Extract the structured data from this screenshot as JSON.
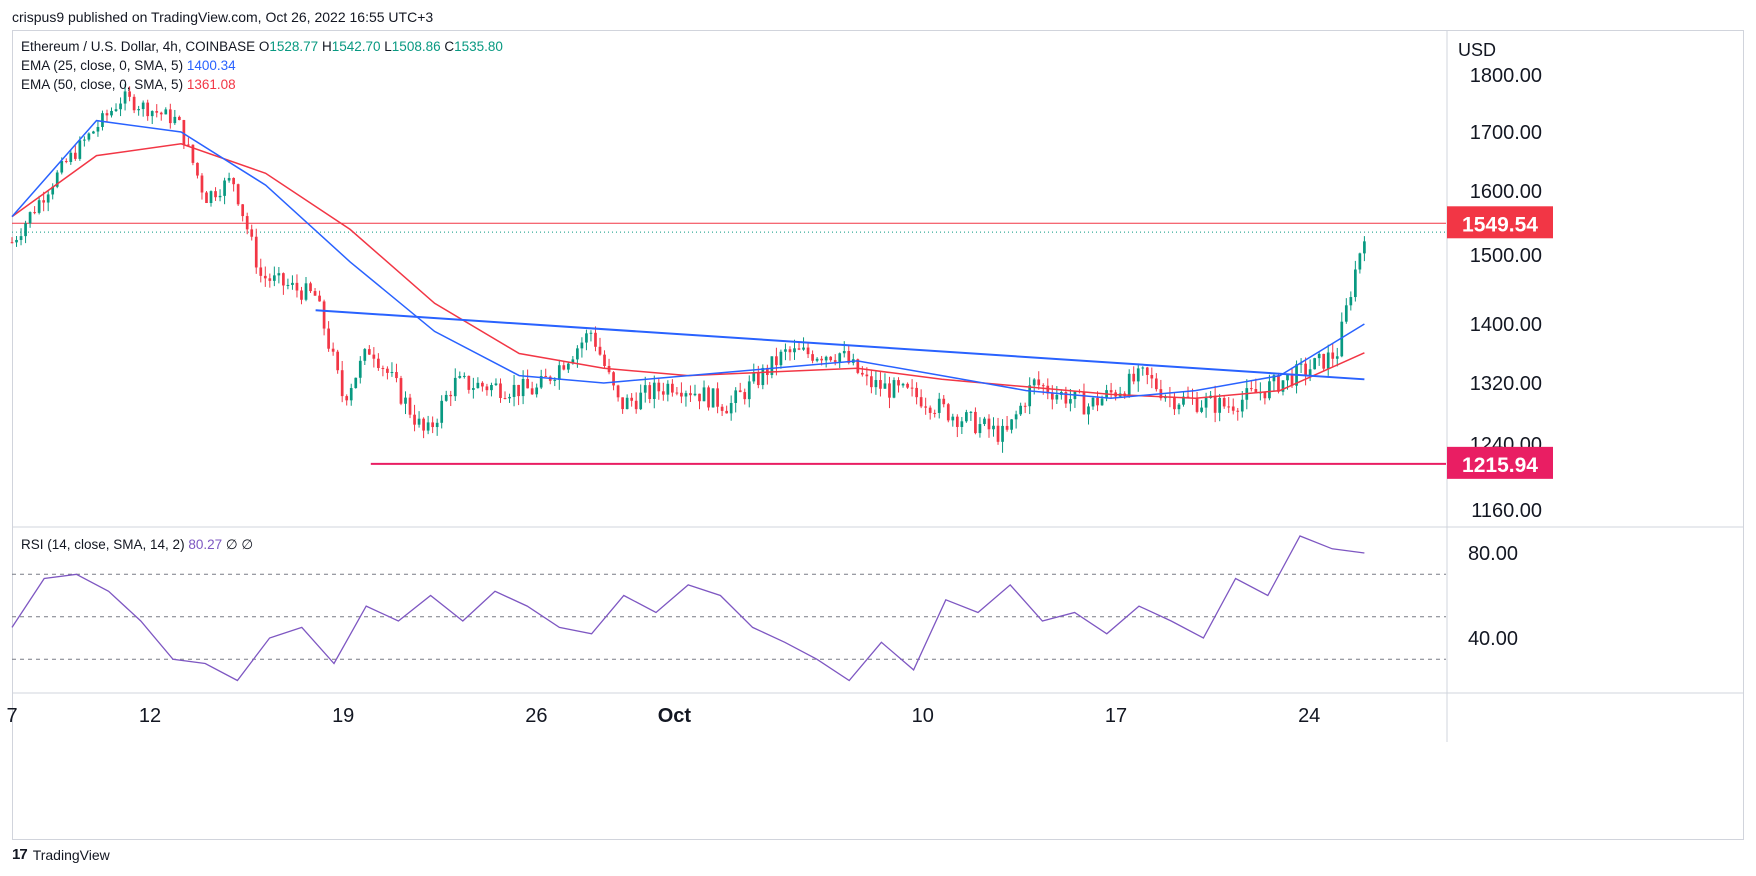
{
  "header": {
    "published": "crispus9 published on TradingView.com, Oct 26, 2022 16:55 UTC+3"
  },
  "legend": {
    "symbol": "Ethereum / U.S. Dollar, 4h, COINBASE",
    "o_label": "O",
    "o": "1528.77",
    "h_label": "H",
    "h": "1542.70",
    "l_label": "L",
    "l": "1508.86",
    "c_label": "C",
    "c": "1535.80",
    "ema25_label": "EMA (25, close, 0, SMA, 5)",
    "ema25_value": "1400.34",
    "ema50_label": "EMA (50, close, 0, SMA, 5)",
    "ema50_value": "1361.08",
    "rsi_label": "RSI (14, close, SMA, 14, 2)",
    "rsi_value": "80.27",
    "rsi_extra": "∅  ∅"
  },
  "footer": {
    "brand": "TradingView",
    "logo": "TV-logo-icon"
  },
  "colors": {
    "up": "#089981",
    "down": "#f23645",
    "ema25": "#2962ff",
    "ema50": "#f23645",
    "trendline": "#2962ff",
    "support": "#e91e63",
    "rsi": "#7e57c2",
    "grid": "#d1d4dc"
  },
  "chart_data": [
    {
      "type": "candlestick",
      "title": "Ethereum / U.S. Dollar, 4h, COINBASE",
      "y_unit": "USD",
      "y_ticks": [
        "1800.00",
        "1700.00",
        "1600.00",
        "1500.00",
        "1400.00",
        "1320.00",
        "1240.00",
        "1160.00"
      ],
      "x_ticks": [
        "7",
        "12",
        "19",
        "26",
        "Oct",
        "10",
        "17",
        "24"
      ],
      "price_labels": [
        {
          "value": "1549.54",
          "kind": "resistance"
        },
        {
          "value": "1215.94",
          "kind": "support"
        }
      ],
      "last_close": 1535.8,
      "close_path_approx": [
        {
          "x": "Sep 7",
          "y": 1520
        },
        {
          "x": "Sep 9",
          "y": 1650
        },
        {
          "x": "Sep 11",
          "y": 1760
        },
        {
          "x": "Sep 13",
          "y": 1720
        },
        {
          "x": "Sep 14",
          "y": 1590
        },
        {
          "x": "Sep 15",
          "y": 1620
        },
        {
          "x": "Sep 16",
          "y": 1470
        },
        {
          "x": "Sep 18",
          "y": 1440
        },
        {
          "x": "Sep 19",
          "y": 1300
        },
        {
          "x": "Sep 20",
          "y": 1370
        },
        {
          "x": "Sep 22",
          "y": 1250
        },
        {
          "x": "Sep 23",
          "y": 1320
        },
        {
          "x": "Sep 26",
          "y": 1310
        },
        {
          "x": "Sep 28",
          "y": 1390
        },
        {
          "x": "Sep 29",
          "y": 1290
        },
        {
          "x": "Oct 1",
          "y": 1320
        },
        {
          "x": "Oct 3",
          "y": 1290
        },
        {
          "x": "Oct 5",
          "y": 1360
        },
        {
          "x": "Oct 7",
          "y": 1360
        },
        {
          "x": "Oct 8",
          "y": 1320
        },
        {
          "x": "Oct 10",
          "y": 1300
        },
        {
          "x": "Oct 11",
          "y": 1280
        },
        {
          "x": "Oct 13",
          "y": 1250
        },
        {
          "x": "Oct 14",
          "y": 1320
        },
        {
          "x": "Oct 16",
          "y": 1290
        },
        {
          "x": "Oct 18",
          "y": 1330
        },
        {
          "x": "Oct 19",
          "y": 1300
        },
        {
          "x": "Oct 21",
          "y": 1290
        },
        {
          "x": "Oct 22",
          "y": 1305
        },
        {
          "x": "Oct 24",
          "y": 1340
        },
        {
          "x": "Oct 25",
          "y": 1360
        },
        {
          "x": "Oct 26",
          "y": 1535
        }
      ],
      "ema25_path_approx": [
        1560,
        1720,
        1700,
        1610,
        1490,
        1390,
        1330,
        1320,
        1330,
        1340,
        1350,
        1330,
        1310,
        1300,
        1310,
        1330,
        1400
      ],
      "ema50_path_approx": [
        1560,
        1660,
        1680,
        1630,
        1540,
        1430,
        1360,
        1340,
        1330,
        1335,
        1340,
        1325,
        1315,
        1305,
        1300,
        1310,
        1361
      ],
      "trendline": {
        "from": {
          "x": "Sep 18",
          "y": 1420
        },
        "to": {
          "x": "Oct 26",
          "y": 1325
        }
      },
      "support_level": 1215.94,
      "resistance_level": 1549.54
    },
    {
      "type": "line",
      "title": "RSI (14, close, SMA, 14, 2)",
      "y_ticks": [
        "80.00",
        "40.00"
      ],
      "levels": [
        70,
        50,
        30
      ],
      "last_value": 80.27,
      "values_approx": [
        45,
        68,
        70,
        62,
        48,
        30,
        28,
        20,
        40,
        45,
        28,
        55,
        48,
        60,
        48,
        62,
        55,
        45,
        42,
        60,
        52,
        65,
        60,
        45,
        38,
        30,
        20,
        38,
        25,
        58,
        52,
        65,
        48,
        52,
        42,
        55,
        48,
        40,
        68,
        60,
        88,
        82,
        80
      ]
    }
  ]
}
